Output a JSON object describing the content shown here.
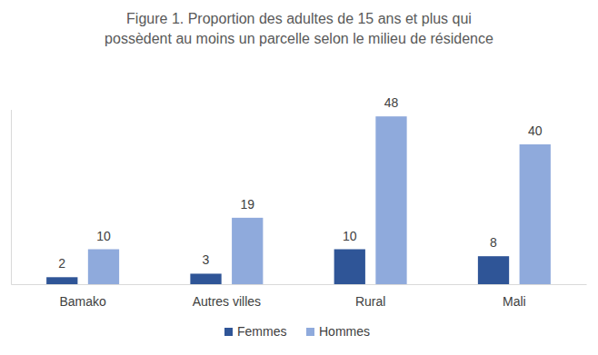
{
  "chart_data": {
    "type": "bar",
    "title": "Figure 1. Proportion des adultes de 15 ans et plus qui\npossèdent au moins un parcelle selon le milieu de résidence",
    "categories": [
      "Bamako",
      "Autres villes",
      "Rural",
      "Mali"
    ],
    "series": [
      {
        "name": "Femmes",
        "color": "#2f5597",
        "values": [
          2,
          3,
          10,
          8
        ]
      },
      {
        "name": "Hommes",
        "color": "#8faadc",
        "values": [
          10,
          19,
          48,
          40
        ]
      }
    ],
    "ylim": [
      0,
      50
    ],
    "yticks": [],
    "grid": false,
    "data_labels": true,
    "tick_labels": "x",
    "legend": "bottom"
  }
}
